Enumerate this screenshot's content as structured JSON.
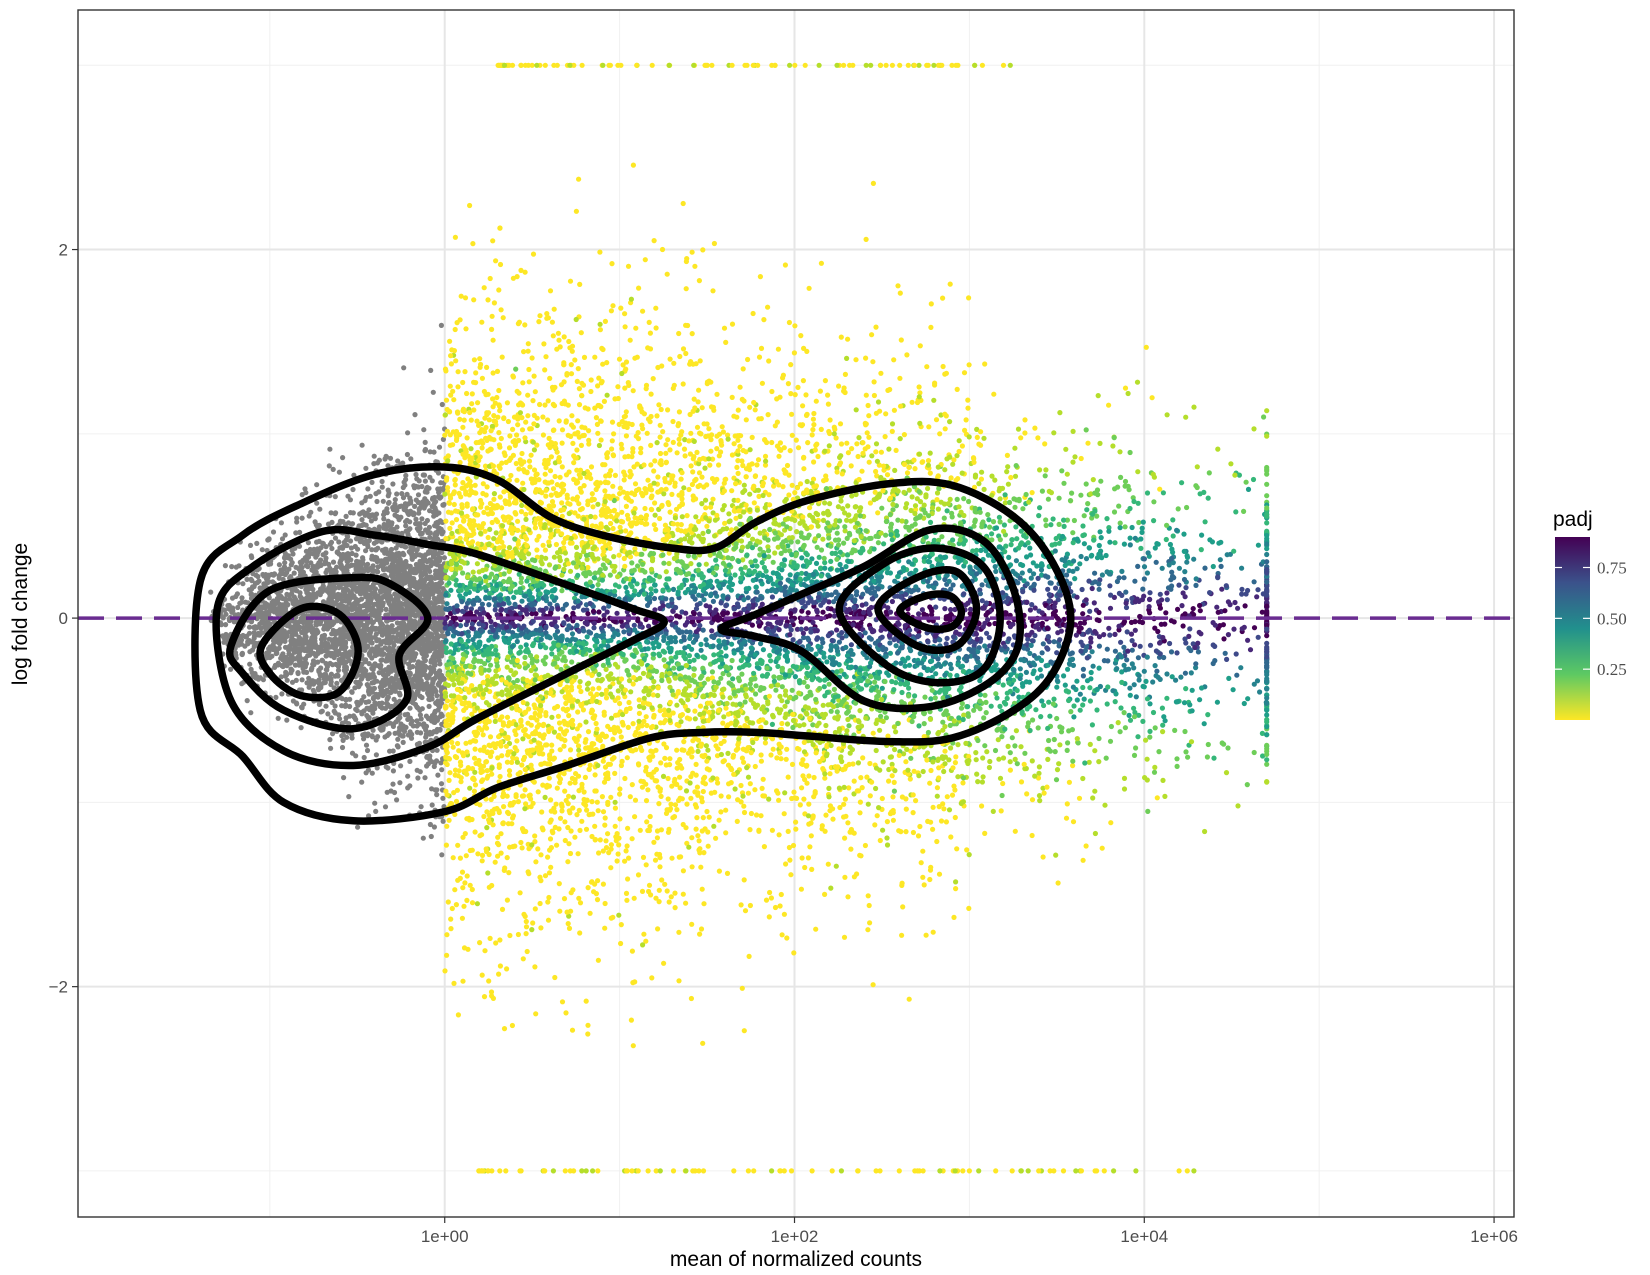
{
  "chart_data": {
    "type": "scatter",
    "title": "",
    "xlabel": "mean of normalized counts",
    "ylabel": "log fold change",
    "x_scale": "log10",
    "xlim": [
      0.008,
      1300000.0
    ],
    "ylim": [
      -3.25,
      3.3
    ],
    "x_ticks": [
      {
        "value": 1,
        "label": "1e+00"
      },
      {
        "value": 100,
        "label": "1e+02"
      },
      {
        "value": 10000,
        "label": "1e+04"
      },
      {
        "value": 1000000,
        "label": "1e+06"
      }
    ],
    "y_ticks": [
      {
        "value": -2,
        "label": "−2"
      },
      {
        "value": 0,
        "label": "0"
      },
      {
        "value": 2,
        "label": "2"
      }
    ],
    "grid": true,
    "reference_line": {
      "y": 0,
      "style": "dashed",
      "color": "#6a2c91"
    },
    "color_scale": {
      "name": "padj",
      "palette": "viridis (reversed)",
      "ticks": [
        {
          "value": 0.75,
          "label": "0.75"
        },
        {
          "value": 0.5,
          "label": "0.50"
        },
        {
          "value": 0.25,
          "label": "0.25"
        }
      ],
      "range": [
        0,
        0.9
      ],
      "na_color": "#808080"
    },
    "point_clouds": [
      {
        "kind": "padj NA (grey)",
        "x_range": [
          0.05,
          1
        ],
        "y_mean": 0,
        "y_spread": 0.6
      },
      {
        "kind": "colored by padj",
        "x_range": [
          1,
          50000
        ],
        "y_mean": 0,
        "y_spread": 0.9
      },
      {
        "kind": "clipped at top",
        "y": 3.0,
        "x_range": [
          2,
          2000
        ]
      },
      {
        "kind": "clipped at bottom",
        "y": -3.0,
        "x_range": [
          1.5,
          20000
        ]
      }
    ],
    "density_contours": [
      {
        "level": 1,
        "points": [
          [
            0.04,
            0.2
          ],
          [
            0.07,
            0.45
          ],
          [
            0.15,
            0.62
          ],
          [
            0.4,
            0.78
          ],
          [
            1.0,
            0.82
          ],
          [
            2.0,
            0.75
          ],
          [
            4,
            0.55
          ],
          [
            8,
            0.45
          ],
          [
            20,
            0.38
          ],
          [
            35,
            0.38
          ],
          [
            60,
            0.52
          ],
          [
            120,
            0.64
          ],
          [
            350,
            0.73
          ],
          [
            800,
            0.72
          ],
          [
            1800,
            0.55
          ],
          [
            3000,
            0.3
          ],
          [
            3800,
            0.0
          ],
          [
            3000,
            -0.3
          ],
          [
            1800,
            -0.5
          ],
          [
            800,
            -0.65
          ],
          [
            350,
            -0.67
          ],
          [
            120,
            -0.64
          ],
          [
            60,
            -0.62
          ],
          [
            30,
            -0.62
          ],
          [
            15,
            -0.65
          ],
          [
            5,
            -0.8
          ],
          [
            2,
            -0.92
          ],
          [
            1.0,
            -1.05
          ],
          [
            0.3,
            -1.1
          ],
          [
            0.12,
            -1.0
          ],
          [
            0.07,
            -0.75
          ],
          [
            0.04,
            -0.5
          ]
        ]
      },
      {
        "level": 2,
        "points": [
          [
            0.05,
            0.05
          ],
          [
            0.08,
            0.28
          ],
          [
            0.2,
            0.47
          ],
          [
            0.4,
            0.45
          ],
          [
            0.8,
            0.4
          ],
          [
            1.5,
            0.35
          ],
          [
            5,
            0.18
          ],
          [
            12,
            0.05
          ],
          [
            18,
            -0.02
          ],
          [
            12,
            -0.12
          ],
          [
            5,
            -0.3
          ],
          [
            1.5,
            -0.55
          ],
          [
            0.8,
            -0.7
          ],
          [
            0.3,
            -0.8
          ],
          [
            0.12,
            -0.72
          ],
          [
            0.06,
            -0.45
          ]
        ]
      },
      {
        "level": 3,
        "points": [
          [
            0.06,
            -0.15
          ],
          [
            0.1,
            0.15
          ],
          [
            0.3,
            0.22
          ],
          [
            0.5,
            0.18
          ],
          [
            0.8,
            0.0
          ],
          [
            0.55,
            -0.2
          ],
          [
            0.6,
            -0.45
          ],
          [
            0.3,
            -0.6
          ],
          [
            0.12,
            -0.5
          ],
          [
            0.07,
            -0.3
          ]
        ]
      },
      {
        "level": 4,
        "points": [
          [
            0.09,
            -0.15
          ],
          [
            0.15,
            0.05
          ],
          [
            0.25,
            0.02
          ],
          [
            0.32,
            -0.18
          ],
          [
            0.25,
            -0.4
          ],
          [
            0.15,
            -0.42
          ],
          [
            0.1,
            -0.3
          ]
        ]
      },
      {
        "level": 5,
        "points": [
          [
            38,
            -0.06
          ],
          [
            60,
            0.02
          ],
          [
            110,
            0.13
          ],
          [
            250,
            0.28
          ],
          [
            600,
            0.48
          ],
          [
            1200,
            0.42
          ],
          [
            1800,
            0.15
          ],
          [
            1900,
            -0.15
          ],
          [
            1300,
            -0.35
          ],
          [
            600,
            -0.48
          ],
          [
            250,
            -0.45
          ],
          [
            110,
            -0.18
          ],
          [
            60,
            -0.1
          ]
        ]
      },
      {
        "level": 6,
        "points": [
          [
            180,
            0.05
          ],
          [
            330,
            0.3
          ],
          [
            650,
            0.38
          ],
          [
            1200,
            0.28
          ],
          [
            1500,
            0.0
          ],
          [
            1200,
            -0.28
          ],
          [
            650,
            -0.35
          ],
          [
            330,
            -0.25
          ]
        ]
      },
      {
        "level": 7,
        "points": [
          [
            300,
            0.05
          ],
          [
            500,
            0.22
          ],
          [
            850,
            0.25
          ],
          [
            1100,
            0.05
          ],
          [
            850,
            -0.15
          ],
          [
            500,
            -0.15
          ]
        ]
      },
      {
        "level": 8,
        "points": [
          [
            400,
            0.04
          ],
          [
            560,
            0.12
          ],
          [
            780,
            0.12
          ],
          [
            900,
            0.03
          ],
          [
            780,
            -0.05
          ],
          [
            560,
            -0.05
          ]
        ]
      }
    ]
  }
}
